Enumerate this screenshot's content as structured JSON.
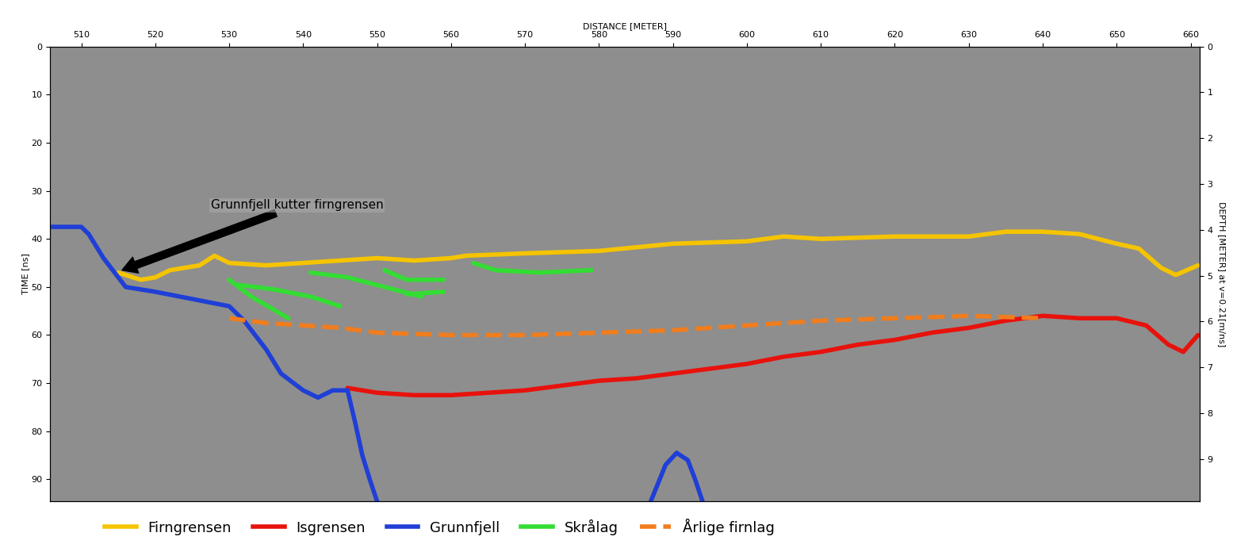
{
  "chart_data": {
    "type": "line",
    "x_label": "DISTANCE [METER]",
    "y_label": "TIME [ns]",
    "y2_label": "DEPTH [METER] at v=0.21[m/ns]",
    "xlim": [
      505.8,
      661.2
    ],
    "xticks": [
      510,
      520,
      530,
      540,
      550,
      560,
      570,
      580,
      590,
      600,
      610,
      620,
      630,
      640,
      650,
      660
    ],
    "ylim": [
      94.6,
      0
    ],
    "yticks": [
      0,
      10,
      20,
      30,
      40,
      50,
      60,
      70,
      80,
      90
    ],
    "y2lim": [
      9.93,
      0
    ],
    "y2ticks": [
      0,
      1,
      2,
      3,
      4,
      5,
      6,
      7,
      8,
      9
    ],
    "legend": "lower center",
    "annotations": [
      {
        "text": "Grunnfjell kutter firngrensen",
        "x": 515.5,
        "y": 46.5,
        "text_x": 527.5,
        "text_y": 33
      }
    ],
    "series": [
      {
        "name": "Firngrensen",
        "color": "#f5c400",
        "line_style": "solid",
        "x": [
          515,
          518,
          520,
          522,
          526,
          528,
          530,
          535,
          540,
          545,
          550,
          555,
          560,
          562,
          570,
          580,
          590,
          600,
          605,
          610,
          620,
          630,
          635,
          640,
          645,
          650,
          653,
          656,
          658,
          661
        ],
        "values": [
          47,
          48.5,
          48,
          46.5,
          45.5,
          43.5,
          45,
          45.5,
          45,
          44.5,
          44,
          44.5,
          44,
          43.5,
          43,
          42.5,
          41,
          40.5,
          39.5,
          40,
          39.5,
          39.5,
          38.5,
          38.5,
          39,
          41,
          42,
          46,
          47.5,
          45.5
        ]
      },
      {
        "name": "Isgrensen",
        "color": "#e8120c",
        "line_style": "solid",
        "x": [
          546,
          550,
          555,
          560,
          565,
          570,
          575,
          580,
          585,
          590,
          595,
          600,
          605,
          610,
          615,
          620,
          625,
          630,
          635,
          640,
          645,
          650,
          654,
          657,
          659,
          661
        ],
        "values": [
          71,
          72,
          72.5,
          72.5,
          72,
          71.5,
          70.5,
          69.5,
          69,
          68,
          67,
          66,
          64.5,
          63.5,
          62,
          61,
          59.5,
          58.5,
          57,
          56,
          56.5,
          56.5,
          58,
          62,
          63.5,
          60
        ]
      },
      {
        "name": "Grunnfjell",
        "color": "#1f3fd6",
        "line_style": "solid",
        "x": [
          505.8,
          510,
          511,
          513,
          515,
          516,
          520,
          525,
          530,
          532,
          535,
          537,
          540,
          542,
          544,
          546,
          547,
          548,
          549,
          550,
          null,
          587,
          589,
          590.5,
          592,
          593,
          594
        ],
        "values": [
          37.5,
          37.5,
          39,
          44,
          48,
          50,
          51,
          52.5,
          54,
          57,
          63,
          68,
          71.5,
          73,
          71.5,
          71.5,
          78,
          85,
          90,
          94.6,
          null,
          94.6,
          87,
          84.5,
          86,
          90,
          94.6
        ]
      },
      {
        "name": "Skrålag",
        "color": "#33dd33",
        "line_style": "solid",
        "x": [
          530,
          533,
          538,
          null,
          531,
          536,
          541,
          545,
          null,
          541,
          546,
          551,
          556,
          null,
          551,
          554,
          559,
          null,
          554,
          559,
          null,
          563,
          566,
          572,
          579
        ],
        "values": [
          48.5,
          52,
          56.5,
          null,
          49.5,
          50.5,
          52,
          54,
          null,
          47,
          48,
          50,
          52,
          null,
          46.5,
          48.5,
          48.5,
          null,
          51.5,
          51,
          null,
          45,
          46.5,
          47,
          46.5
        ]
      },
      {
        "name": "Årlige firnlag",
        "color": "#f07d1e",
        "line_style": "dashed",
        "x": [
          530,
          535,
          540,
          545,
          550,
          560,
          570,
          580,
          590,
          600,
          610,
          620,
          630,
          640
        ],
        "values": [
          56.5,
          57.5,
          58,
          58.5,
          59.5,
          60,
          60,
          59.5,
          59,
          58,
          57,
          56.5,
          56,
          56.5
        ]
      }
    ]
  }
}
